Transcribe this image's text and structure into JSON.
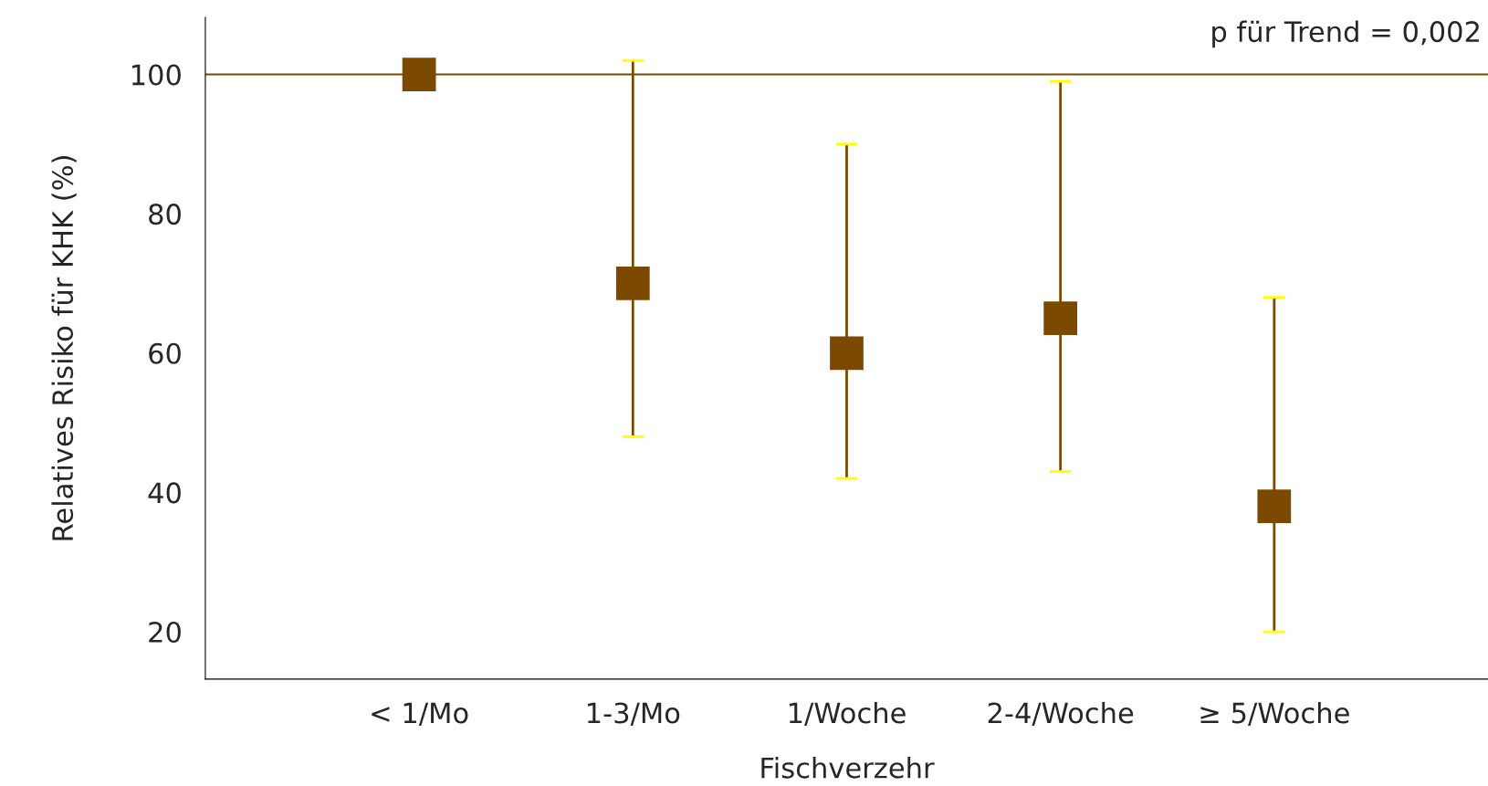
{
  "chart_data": {
    "type": "scatter",
    "xlabel": "Fischverzehr",
    "ylabel": "Relatives Risiko für KHK (%)",
    "categories": [
      "< 1/Mo",
      "1-3/Mo",
      "1/Woche",
      "2-4/Woche",
      "≥ 5/Woche"
    ],
    "series": [
      {
        "color": "#7b4a00",
        "values": [
          100,
          70,
          60,
          65,
          38
        ],
        "errors": [
          null,
          [
            48,
            102
          ],
          [
            42,
            90
          ],
          [
            43,
            99
          ],
          [
            20,
            68
          ]
        ]
      }
    ],
    "marker": "square",
    "ylim": [
      13.2,
      108.2
    ],
    "yticks": [
      20,
      40,
      60,
      80,
      100
    ],
    "ref_lines": [
      {
        "axis": "y",
        "value": 100,
        "color": "#7b4a00"
      }
    ],
    "annotations": [
      "p für Trend = 0,002"
    ],
    "grid": false,
    "legend": false
  }
}
